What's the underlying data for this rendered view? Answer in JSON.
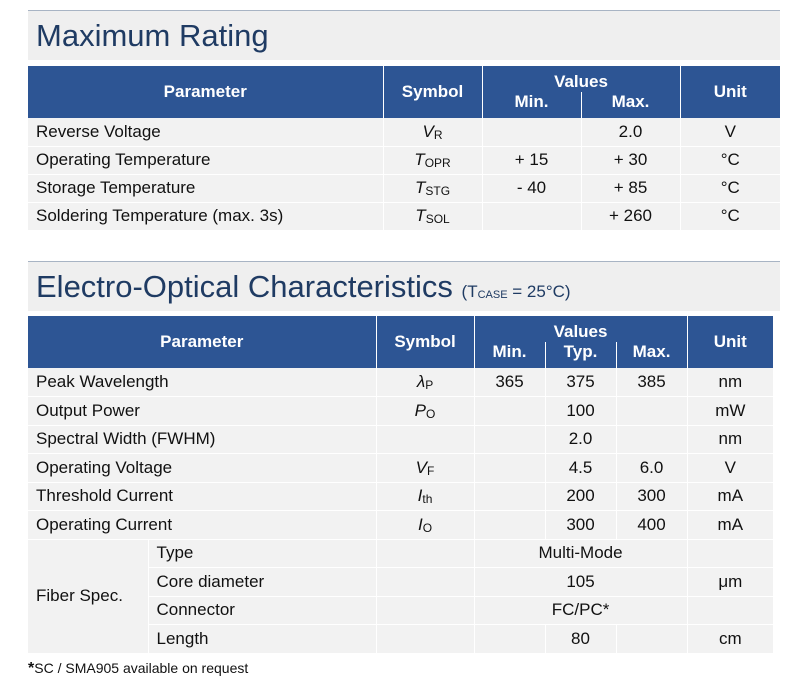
{
  "max_rating": {
    "title": "Maximum Rating",
    "headers": {
      "parameter": "Parameter",
      "symbol": "Symbol",
      "values": "Values",
      "min": "Min.",
      "max": "Max.",
      "unit": "Unit"
    },
    "rows": [
      {
        "parameter": "Reverse Voltage",
        "sym": "V",
        "sub": "R",
        "min": "",
        "max": "2.0",
        "unit": "V"
      },
      {
        "parameter": "Operating Temperature",
        "sym": "T",
        "sub": "OPR",
        "min": "+ 15",
        "max": "+ 30",
        "unit": "°C"
      },
      {
        "parameter": "Storage Temperature",
        "sym": "T",
        "sub": "STG",
        "min": "- 40",
        "max": "+ 85",
        "unit": "°C"
      },
      {
        "parameter": "Soldering Temperature (max. 3s)",
        "sym": "T",
        "sub": "SOL",
        "min": "",
        "max": "+ 260",
        "unit": "°C"
      }
    ]
  },
  "electro_optical": {
    "title": "Electro-Optical Characteristics",
    "condition_prefix": "(T",
    "condition_sub": "CASE",
    "condition_suffix": " = 25°C)",
    "headers": {
      "parameter": "Parameter",
      "symbol": "Symbol",
      "values": "Values",
      "min": "Min.",
      "typ": "Typ.",
      "max": "Max.",
      "unit": "Unit"
    },
    "rows": [
      {
        "parameter": "Peak Wavelength",
        "sym": "λ",
        "sub": "P",
        "min": "365",
        "typ": "375",
        "max": "385",
        "unit": "nm"
      },
      {
        "parameter": "Output Power",
        "sym": "P",
        "sub": "O",
        "min": "",
        "typ": "100",
        "max": "",
        "unit": "mW"
      },
      {
        "parameter": "Spectral Width (FWHM)",
        "sym": "",
        "sub": "",
        "min": "",
        "typ": "2.0",
        "max": "",
        "unit": "nm"
      },
      {
        "parameter": "Operating  Voltage",
        "sym": "V",
        "sub": "F",
        "min": "",
        "typ": "4.5",
        "max": "6.0",
        "unit": "V"
      },
      {
        "parameter": "Threshold Current",
        "sym": "I",
        "sub": "th",
        "min": "",
        "typ": "200",
        "max": "300",
        "unit": "mA"
      },
      {
        "parameter": "Operating Current",
        "sym": "I",
        "sub": "O",
        "min": "",
        "typ": "300",
        "max": "400",
        "unit": "mA"
      }
    ],
    "fiber": {
      "label": "Fiber Spec.",
      "rows": [
        {
          "parameter": "Type",
          "value": "Multi-Mode",
          "unit": ""
        },
        {
          "parameter": "Core diameter",
          "value": "105",
          "unit": "μm"
        },
        {
          "parameter": "Connector",
          "value": "FC/PC*",
          "unit": ""
        },
        {
          "parameter": "Length",
          "value": "80",
          "unit": "cm"
        }
      ]
    }
  },
  "footnote": {
    "star": "*",
    "text": "SC / SMA905 available on request"
  }
}
